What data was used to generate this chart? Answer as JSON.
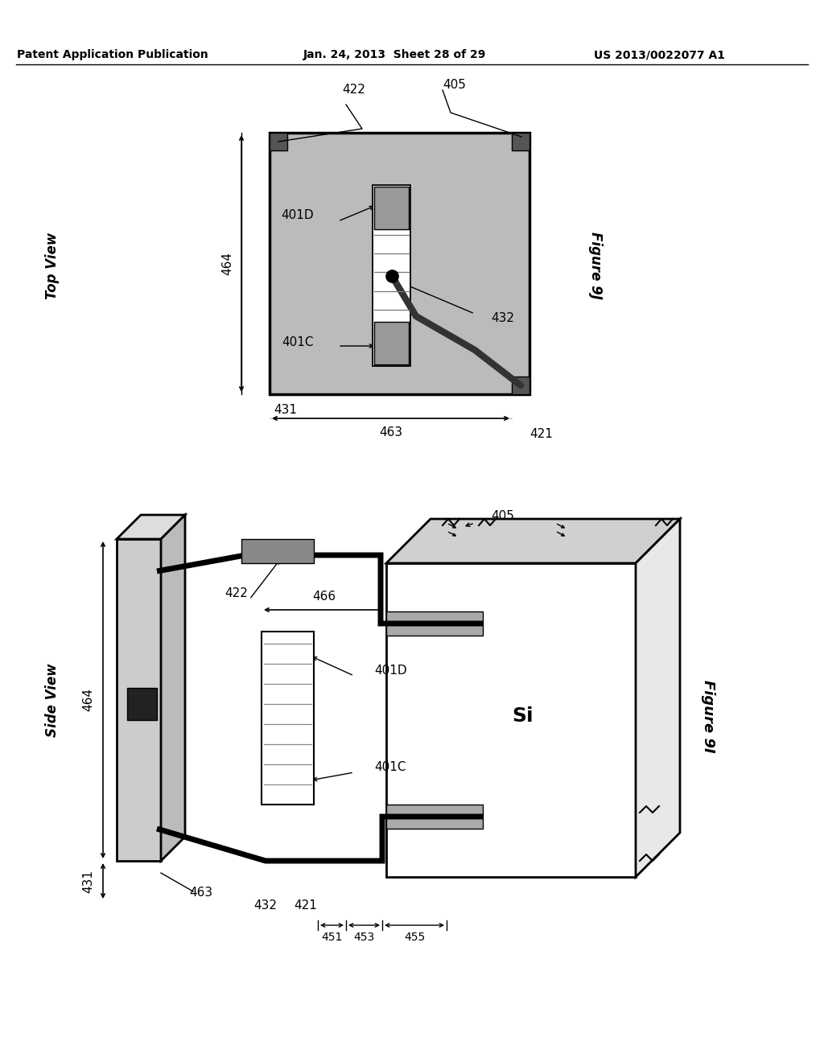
{
  "bg_color": "#ffffff",
  "header_left": "Patent Application Publication",
  "header_mid": "Jan. 24, 2013  Sheet 28 of 29",
  "header_right": "US 2013/0022077 A1"
}
